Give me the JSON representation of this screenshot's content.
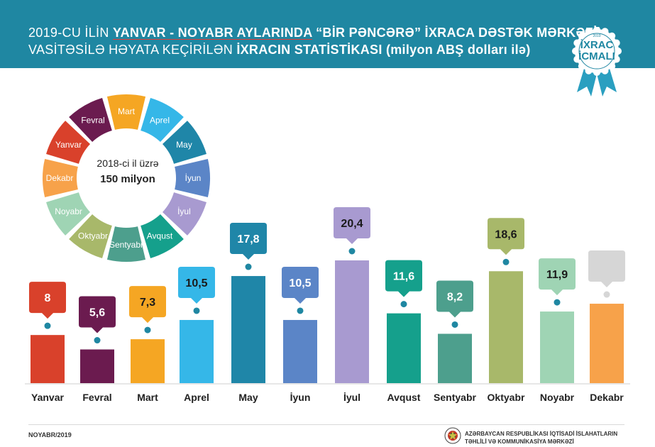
{
  "header": {
    "line1_pre": "2019-CU İLİN ",
    "line1_hl": "YANVAR - NOYABR AYLARINDA",
    "line1_post": " “BİR PƏNCƏRƏ” İXRACA DƏSTƏK MƏRKƏZİ",
    "line2_pre": "VASİTƏSİLƏ HƏYATA KEÇİRİLƏN ",
    "line2_hl": "İXRACIN STATİSTİKASI",
    "line2_post": " (milyon ABŞ dolları ilə)"
  },
  "badge": {
    "line1": "İXRAC",
    "line2": "İCMALI",
    "year": "2019"
  },
  "wheel": {
    "center_label": "2018-ci il üzrə",
    "center_value": "150 milyon",
    "segments": [
      {
        "label": "Mart",
        "color": "#f5a623"
      },
      {
        "label": "Aprel",
        "color": "#35b7e8"
      },
      {
        "label": "May",
        "color": "#1f86a8"
      },
      {
        "label": "İyun",
        "color": "#5b85c7"
      },
      {
        "label": "İyul",
        "color": "#a89ad0"
      },
      {
        "label": "Avqust",
        "color": "#15a08c"
      },
      {
        "label": "Sentyabr",
        "color": "#4d9f8d"
      },
      {
        "label": "Oktyabr",
        "color": "#a8b86a"
      },
      {
        "label": "Noyabr",
        "color": "#9fd4b4"
      },
      {
        "label": "Dekabr",
        "color": "#f7a24a"
      },
      {
        "label": "Yanvar",
        "color": "#d9412b"
      },
      {
        "label": "Fevral",
        "color": "#6b1b4f"
      }
    ]
  },
  "chart_data": {
    "type": "bar",
    "categories": [
      "Yanvar",
      "Fevral",
      "Mart",
      "Aprel",
      "May",
      "İyun",
      "İyul",
      "Avqust",
      "Sentyabr",
      "Oktyabr",
      "Noyabr",
      "Dekabr"
    ],
    "values": [
      8,
      5.6,
      7.3,
      10.5,
      17.8,
      10.5,
      20.4,
      11.6,
      8.2,
      18.6,
      11.9,
      null
    ],
    "value_labels": [
      "8",
      "5,6",
      "7,3",
      "10,5",
      "17,8",
      "10,5",
      "20,4",
      "11,6",
      "8,2",
      "18,6",
      "11,9",
      ""
    ],
    "colors": [
      "#d9412b",
      "#6b1b4f",
      "#f5a623",
      "#35b7e8",
      "#1f86a8",
      "#5b85c7",
      "#a89ad0",
      "#15a08c",
      "#4d9f8d",
      "#a8b86a",
      "#9fd4b4",
      "#f7a24a"
    ],
    "placeholder_color": "#d6d6d6",
    "dekabr_bar_level": 13.2,
    "title": "",
    "xlabel": "",
    "ylabel": "",
    "ylim": [
      0,
      20.4
    ]
  },
  "footer": {
    "date": "NOYABR/2019",
    "org_line1": "AZƏRBAYCAN RESPUBLİKASI İQTİSADİ İSLAHATLARIN",
    "org_line2": "TƏHLİLİ VƏ KOMMUNİKASİYA MƏRKƏZİ"
  }
}
